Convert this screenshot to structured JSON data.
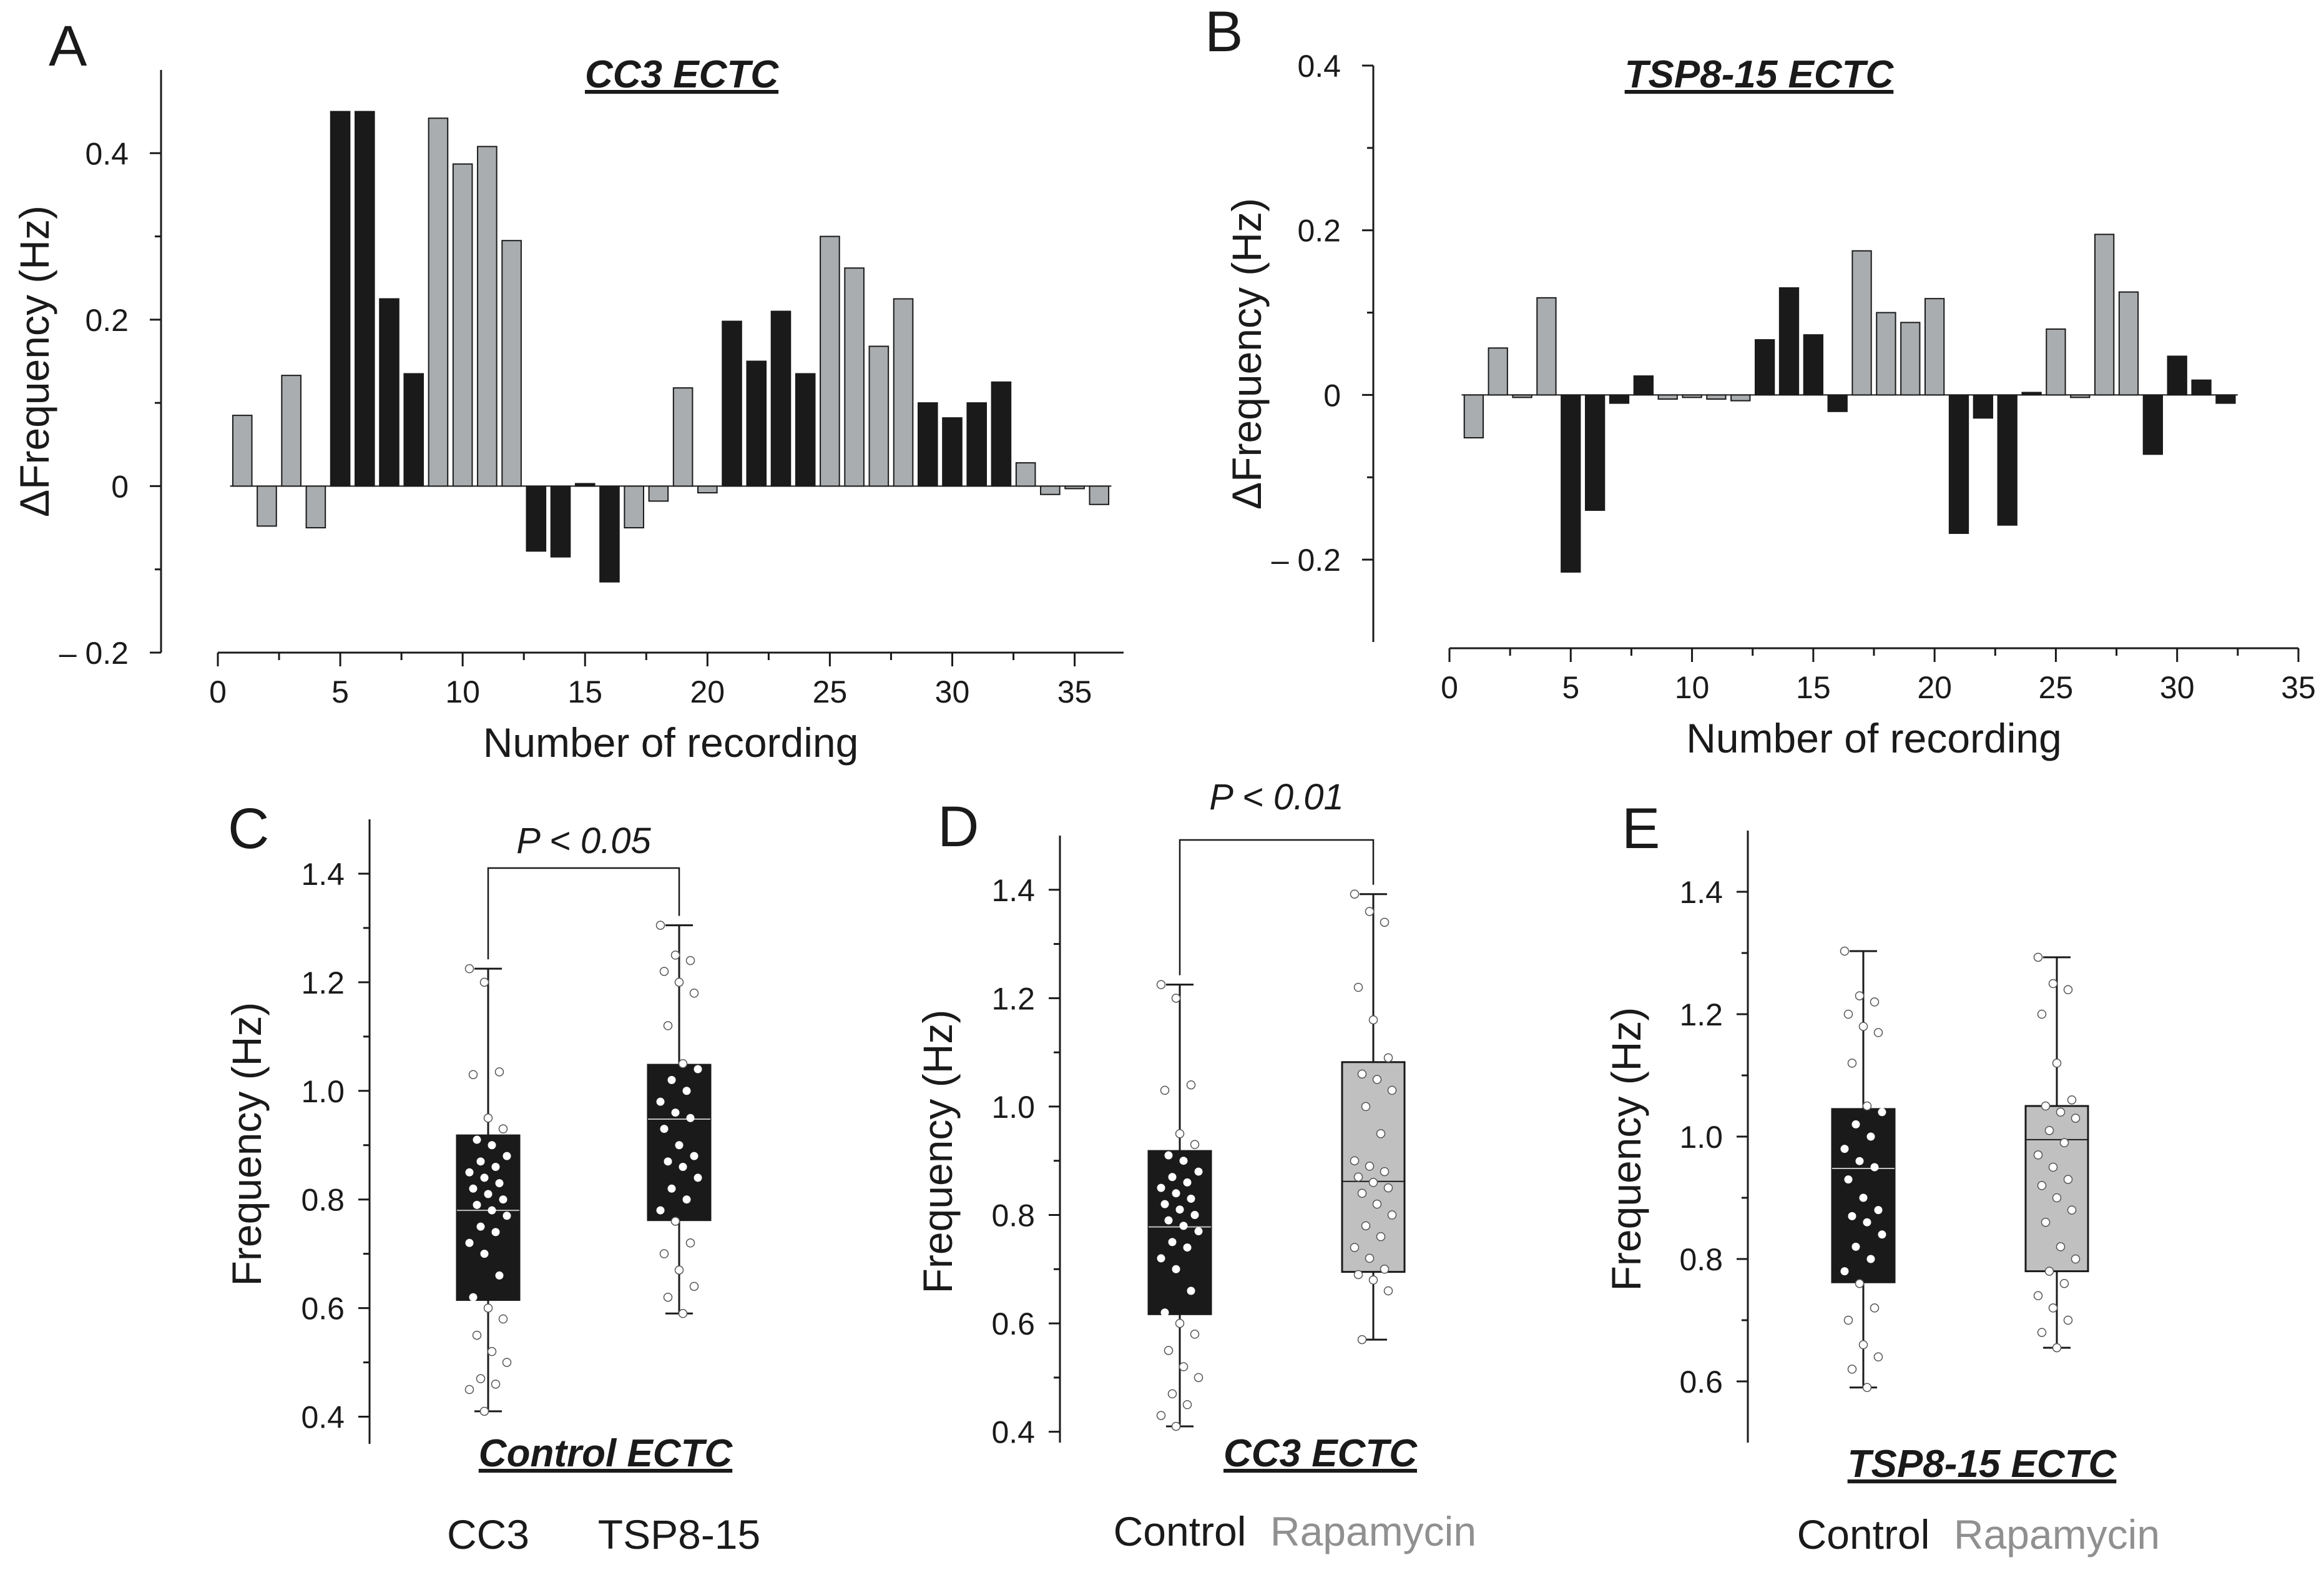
{
  "colors": {
    "black_bar": "#1a1a1a",
    "gray_bar": "#a9adaf",
    "gray_box": "#c0c0c0",
    "gray_label": "#909090"
  },
  "chart_data": [
    {
      "panel": "A",
      "type": "bar",
      "title": "CC3 ECTC",
      "xlabel": "Number of recording",
      "ylabel": "ΔFrequency (Hz)",
      "xlim": [
        0,
        37
      ],
      "ylim": [
        -0.2,
        0.5
      ],
      "xticks": [
        0,
        5,
        10,
        15,
        20,
        25,
        30,
        35
      ],
      "yticks": [
        -0.2,
        0,
        0.2,
        0.4
      ],
      "ytick_labels": [
        "– 0.2",
        "0",
        "0.2",
        "0.4"
      ],
      "values": [
        0.085,
        -0.048,
        0.133,
        -0.05,
        0.45,
        0.45,
        0.225,
        0.135,
        0.442,
        0.387,
        0.408,
        0.295,
        -0.078,
        -0.085,
        0.003,
        -0.115,
        -0.05,
        -0.018,
        0.118,
        -0.008,
        0.198,
        0.15,
        0.21,
        0.135,
        0.3,
        0.262,
        0.168,
        0.225,
        0.1,
        0.082,
        0.1,
        0.125,
        0.028,
        -0.01,
        -0.003,
        -0.022
      ],
      "bar_colors": [
        "gray",
        "gray",
        "gray",
        "gray",
        "black",
        "black",
        "black",
        "black",
        "gray",
        "gray",
        "gray",
        "gray",
        "black",
        "black",
        "black",
        "black",
        "gray",
        "gray",
        "gray",
        "gray",
        "black",
        "black",
        "black",
        "black",
        "gray",
        "gray",
        "gray",
        "gray",
        "black",
        "black",
        "black",
        "black",
        "gray",
        "gray",
        "gray",
        "gray"
      ]
    },
    {
      "panel": "B",
      "type": "bar",
      "title": "TSP8-15 ECTC",
      "xlabel": "Number of recording",
      "ylabel": "ΔFrequency (Hz)",
      "xlim": [
        0,
        35
      ],
      "ylim": [
        -0.3,
        0.4
      ],
      "xticks": [
        0,
        5,
        10,
        15,
        20,
        25,
        30,
        35
      ],
      "yticks": [
        -0.2,
        0,
        0.2,
        0.4
      ],
      "ytick_labels": [
        "– 0.2",
        "0",
        "0.2",
        "0.4"
      ],
      "values": [
        -0.052,
        0.057,
        -0.003,
        0.118,
        -0.215,
        -0.14,
        -0.01,
        0.023,
        -0.005,
        -0.003,
        -0.005,
        -0.007,
        0.067,
        0.13,
        0.073,
        -0.02,
        0.175,
        0.1,
        0.088,
        0.117,
        -0.168,
        -0.028,
        -0.158,
        0.003,
        0.08,
        -0.003,
        0.195,
        0.125,
        -0.072,
        0.047,
        0.018,
        -0.01
      ],
      "bar_colors": [
        "gray",
        "gray",
        "gray",
        "gray",
        "black",
        "black",
        "black",
        "black",
        "gray",
        "gray",
        "gray",
        "gray",
        "black",
        "black",
        "black",
        "black",
        "gray",
        "gray",
        "gray",
        "gray",
        "black",
        "black",
        "black",
        "black",
        "gray",
        "gray",
        "gray",
        "gray",
        "black",
        "black",
        "black",
        "black"
      ]
    },
    {
      "panel": "C",
      "type": "box",
      "title": "Control ECTC",
      "ylabel": "Frequency (Hz)",
      "ylim": [
        0.35,
        1.5
      ],
      "yticks": [
        0.4,
        0.6,
        0.8,
        1.0,
        1.2,
        1.4
      ],
      "ytick_labels": [
        "0.4",
        "0.6",
        "0.8",
        "1.0",
        "1.2",
        "1.4"
      ],
      "significance": "P < 0.05",
      "groups": [
        {
          "label": "CC3",
          "fill": "black",
          "min": 0.41,
          "q1": 0.615,
          "median": 0.78,
          "q3": 0.918,
          "max": 1.225,
          "points": [
            1.225,
            1.2,
            1.035,
            1.03,
            0.95,
            0.93,
            0.91,
            0.9,
            0.88,
            0.87,
            0.86,
            0.85,
            0.84,
            0.83,
            0.82,
            0.81,
            0.8,
            0.79,
            0.78,
            0.77,
            0.75,
            0.74,
            0.72,
            0.7,
            0.66,
            0.62,
            0.6,
            0.58,
            0.55,
            0.52,
            0.5,
            0.47,
            0.46,
            0.45,
            0.41
          ]
        },
        {
          "label": "TSP8-15",
          "fill": "black",
          "min": 0.59,
          "q1": 0.762,
          "median": 0.948,
          "q3": 1.048,
          "max": 1.305,
          "points": [
            1.305,
            1.25,
            1.24,
            1.22,
            1.2,
            1.18,
            1.12,
            1.05,
            1.04,
            1.02,
            1.0,
            0.98,
            0.96,
            0.95,
            0.93,
            0.9,
            0.88,
            0.87,
            0.86,
            0.84,
            0.82,
            0.8,
            0.78,
            0.76,
            0.72,
            0.7,
            0.67,
            0.64,
            0.62,
            0.59
          ]
        }
      ]
    },
    {
      "panel": "D",
      "type": "box",
      "title": "CC3 ECTC",
      "ylabel": "Frequency (Hz)",
      "ylim": [
        0.38,
        1.5
      ],
      "yticks": [
        0.4,
        0.6,
        0.8,
        1.0,
        1.2,
        1.4
      ],
      "ytick_labels": [
        "0.4",
        "0.6",
        "0.8",
        "1.0",
        "1.2",
        "1.4"
      ],
      "significance": "P < 0.01",
      "groups": [
        {
          "label": "Control",
          "fill": "black",
          "min": 0.41,
          "q1": 0.617,
          "median": 0.778,
          "q3": 0.918,
          "max": 1.225,
          "points": [
            1.225,
            1.2,
            1.04,
            1.03,
            0.95,
            0.93,
            0.91,
            0.9,
            0.88,
            0.87,
            0.86,
            0.85,
            0.84,
            0.83,
            0.82,
            0.81,
            0.8,
            0.79,
            0.78,
            0.77,
            0.75,
            0.74,
            0.72,
            0.7,
            0.66,
            0.62,
            0.6,
            0.58,
            0.55,
            0.52,
            0.5,
            0.47,
            0.45,
            0.43,
            0.41
          ]
        },
        {
          "label": "Rapamycin",
          "fill": "gray",
          "min": 0.57,
          "q1": 0.695,
          "median": 0.862,
          "q3": 1.082,
          "max": 1.392,
          "points": [
            1.392,
            1.36,
            1.34,
            1.22,
            1.16,
            1.09,
            1.06,
            1.05,
            1.03,
            1.0,
            0.95,
            0.9,
            0.89,
            0.88,
            0.87,
            0.86,
            0.85,
            0.84,
            0.82,
            0.8,
            0.78,
            0.76,
            0.74,
            0.72,
            0.7,
            0.69,
            0.68,
            0.66,
            0.57
          ]
        }
      ]
    },
    {
      "panel": "E",
      "type": "box",
      "title": "TSP8-15 ECTC",
      "ylabel": "Frequency (Hz)",
      "ylim": [
        0.5,
        1.5
      ],
      "yticks": [
        0.6,
        0.8,
        1.0,
        1.2,
        1.4
      ],
      "ytick_labels": [
        "0.6",
        "0.8",
        "1.0",
        "1.2",
        "1.4"
      ],
      "significance": "",
      "groups": [
        {
          "label": "Control",
          "fill": "black",
          "min": 0.59,
          "q1": 0.762,
          "median": 0.948,
          "q3": 1.045,
          "max": 1.303,
          "points": [
            1.303,
            1.23,
            1.22,
            1.2,
            1.18,
            1.17,
            1.12,
            1.05,
            1.04,
            1.02,
            1.0,
            0.98,
            0.96,
            0.95,
            0.93,
            0.9,
            0.88,
            0.87,
            0.86,
            0.84,
            0.82,
            0.8,
            0.78,
            0.76,
            0.72,
            0.7,
            0.66,
            0.64,
            0.62,
            0.59
          ]
        },
        {
          "label": "Rapamycin",
          "fill": "gray",
          "min": 0.655,
          "q1": 0.78,
          "median": 0.995,
          "q3": 1.05,
          "max": 1.293,
          "points": [
            1.293,
            1.25,
            1.24,
            1.2,
            1.12,
            1.06,
            1.05,
            1.04,
            1.03,
            1.01,
            0.99,
            0.97,
            0.95,
            0.93,
            0.92,
            0.9,
            0.88,
            0.86,
            0.82,
            0.8,
            0.78,
            0.76,
            0.74,
            0.72,
            0.7,
            0.68,
            0.655
          ]
        }
      ]
    }
  ]
}
